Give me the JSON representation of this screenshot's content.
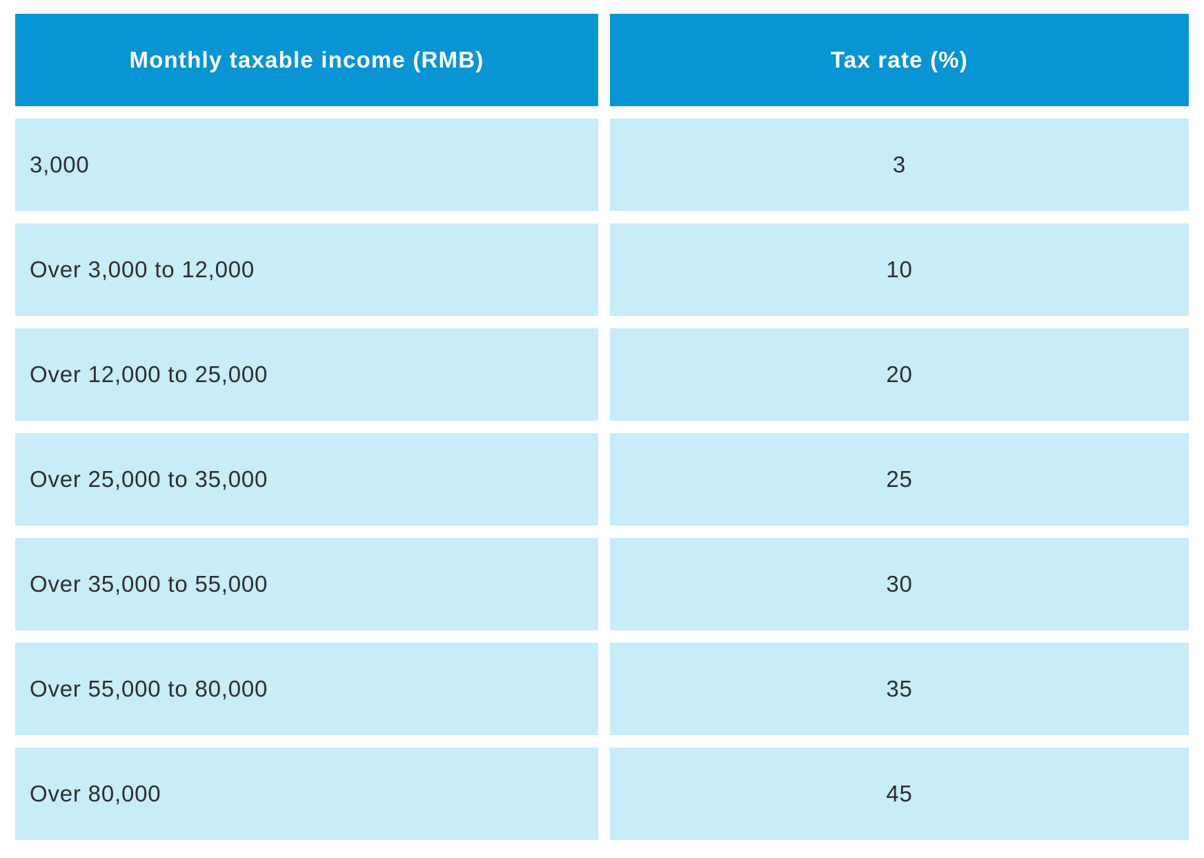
{
  "chart_data": {
    "type": "table",
    "title": "",
    "columns": [
      "Monthly taxable income (RMB)",
      "Tax rate (%)"
    ],
    "rows": [
      [
        "3,000",
        3
      ],
      [
        "Over 3,000 to 12,000",
        10
      ],
      [
        "Over 12,000 to 25,000",
        20
      ],
      [
        "Over 25,000 to 35,000",
        25
      ],
      [
        "Over 35,000 to 55,000",
        30
      ],
      [
        "Over 55,000 to 80,000",
        35
      ],
      [
        "Over 80,000",
        45
      ]
    ],
    "layout_hints": {
      "header_position": "top",
      "grid": "off",
      "row_separator": "white-gap",
      "income_alignment": "left",
      "rate_alignment": "center"
    }
  },
  "table": {
    "header": {
      "income": "Monthly taxable income (RMB)",
      "rate": "Tax rate (%)"
    },
    "rows": [
      {
        "income": "3,000",
        "rate": "3"
      },
      {
        "income": "Over 3,000 to 12,000",
        "rate": "10"
      },
      {
        "income": "Over 12,000 to 25,000",
        "rate": "20"
      },
      {
        "income": "Over 25,000 to 35,000",
        "rate": "25"
      },
      {
        "income": "Over 35,000 to 55,000",
        "rate": "30"
      },
      {
        "income": "Over 55,000 to 80,000",
        "rate": "35"
      },
      {
        "income": "Over 80,000",
        "rate": "45"
      }
    ],
    "colors": {
      "header_bg": "#0994d3",
      "row_bg": "#c6edf8",
      "header_text": "#ffffff",
      "body_text": "#2e2e2e"
    }
  }
}
